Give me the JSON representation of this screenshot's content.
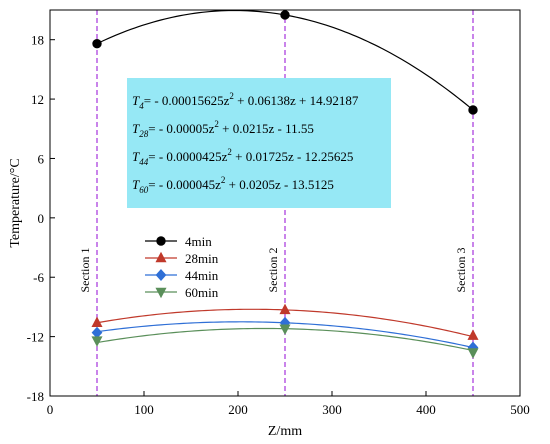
{
  "chart_data": {
    "type": "line",
    "xlabel": "Z/mm",
    "ylabel": "Temperature/°C",
    "xlim": [
      0,
      500
    ],
    "ylim": [
      -18,
      21
    ],
    "xticks": [
      0,
      100,
      200,
      300,
      400,
      500
    ],
    "yticks": [
      -18,
      -12,
      -6,
      0,
      6,
      12,
      18
    ],
    "grid": false,
    "legend_position": "center-left",
    "sections": [
      {
        "label": "Section 1",
        "x": 50
      },
      {
        "label": "Section 2",
        "x": 250
      },
      {
        "label": "Section 3",
        "x": 450
      }
    ],
    "series": [
      {
        "name": "4min",
        "color": "#000000",
        "marker": "circle",
        "points": [
          {
            "x": 50,
            "y": 17.6
          },
          {
            "x": 250,
            "y": 20.5
          },
          {
            "x": 450,
            "y": 10.9
          }
        ],
        "coefficients": {
          "a": -0.00015625,
          "b": 0.06138,
          "c": 14.92187
        }
      },
      {
        "name": "28min",
        "color": "#c0392b",
        "marker": "triangle-up",
        "points": [
          {
            "x": 50,
            "y": -10.6
          },
          {
            "x": 250,
            "y": -9.3
          },
          {
            "x": 450,
            "y": -11.9
          }
        ],
        "coefficients": {
          "a": -5e-05,
          "b": 0.0215,
          "c": -11.55
        }
      },
      {
        "name": "44min",
        "color": "#2f6fd6",
        "marker": "diamond",
        "points": [
          {
            "x": 50,
            "y": -11.6
          },
          {
            "x": 250,
            "y": -10.6
          },
          {
            "x": 450,
            "y": -13.1
          }
        ],
        "coefficients": {
          "a": -4.25e-05,
          "b": 0.01725,
          "c": -12.25625
        }
      },
      {
        "name": "60min",
        "color": "#5a8f5a",
        "marker": "triangle-down",
        "points": [
          {
            "x": 50,
            "y": -12.4
          },
          {
            "x": 250,
            "y": -11.2
          },
          {
            "x": 450,
            "y": -13.6
          }
        ],
        "coefficients": {
          "a": -4.5e-05,
          "b": 0.0205,
          "c": -13.5125
        }
      }
    ],
    "annotation_box": {
      "background": "#96e8f5",
      "equations": [
        {
          "sym": "T",
          "sub": "4",
          "text": "= - 0.00015625z",
          "sup": "2",
          "rest": " + 0.06138z + 14.92187"
        },
        {
          "sym": "T",
          "sub": "28",
          "text": "= - 0.00005z",
          "sup": "2",
          "rest": " + 0.0215z - 11.55"
        },
        {
          "sym": "T",
          "sub": "44",
          "text": "= - 0.0000425z",
          "sup": "2",
          "rest": " + 0.01725z - 12.25625"
        },
        {
          "sym": "T",
          "sub": "60",
          "text": "= - 0.000045z",
          "sup": "2",
          "rest": " + 0.0205z - 13.5125"
        }
      ]
    }
  }
}
